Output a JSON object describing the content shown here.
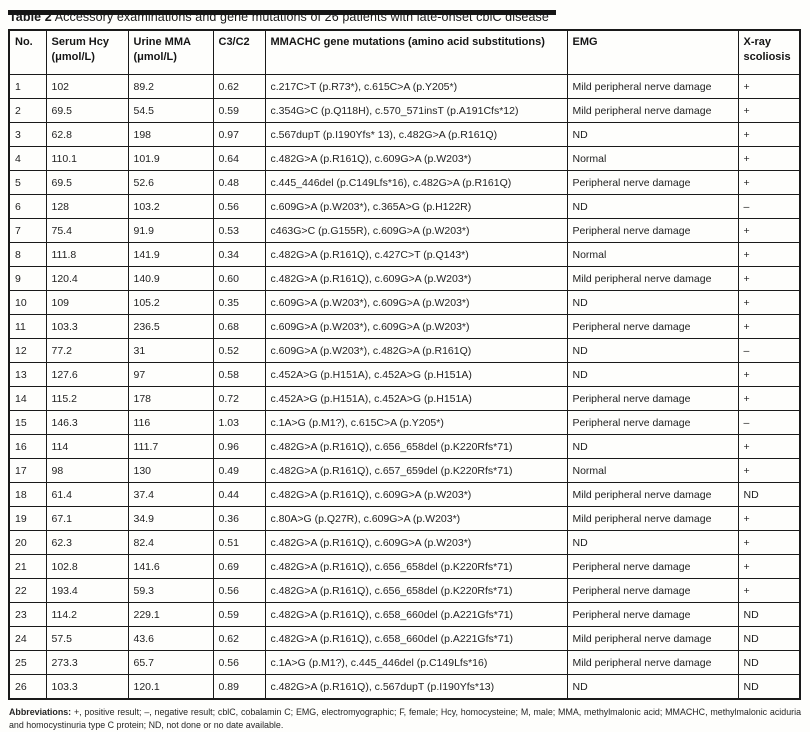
{
  "title": {
    "label": "Table 2",
    "text": " Accessory examinations and gene mutations of 26 patients with late-onset cblC disease"
  },
  "table": {
    "columns": [
      {
        "name": "no",
        "lines": [
          "No."
        ]
      },
      {
        "name": "serum-hcy",
        "lines": [
          "Serum Hcy",
          "(μmol/L)"
        ]
      },
      {
        "name": "urine-mma",
        "lines": [
          "Urine MMA",
          "(μmol/L)"
        ]
      },
      {
        "name": "c3-c2",
        "lines": [
          "C3/C2"
        ]
      },
      {
        "name": "mmachc-mutations",
        "lines": [
          "MMACHC gene mutations (amino acid substitutions)"
        ]
      },
      {
        "name": "emg",
        "lines": [
          "EMG"
        ]
      },
      {
        "name": "xray-scoliosis",
        "lines": [
          "X-ray",
          "scoliosis"
        ]
      }
    ],
    "rows": [
      [
        "1",
        "102",
        "89.2",
        "0.62",
        "c.217C>T (p.R73*), c.615C>A (p.Y205*)",
        "Mild peripheral nerve damage",
        "+"
      ],
      [
        "2",
        "69.5",
        "54.5",
        "0.59",
        "c.354G>C (p.Q118H), c.570_571insT (p.A191Cfs*12)",
        "Mild peripheral nerve damage",
        "+"
      ],
      [
        "3",
        "62.8",
        "198",
        "0.97",
        "c.567dupT (p.I190Yfs* 13), c.482G>A (p.R161Q)",
        "ND",
        "+"
      ],
      [
        "4",
        "110.1",
        "101.9",
        "0.64",
        "c.482G>A (p.R161Q), c.609G>A (p.W203*)",
        "Normal",
        "+"
      ],
      [
        "5",
        "69.5",
        "52.6",
        "0.48",
        "c.445_446del (p.C149Lfs*16), c.482G>A (p.R161Q)",
        "Peripheral nerve damage",
        "+"
      ],
      [
        "6",
        "128",
        "103.2",
        "0.56",
        "c.609G>A (p.W203*), c.365A>G (p.H122R)",
        "ND",
        "–"
      ],
      [
        "7",
        "75.4",
        "91.9",
        "0.53",
        "c463G>C (p.G155R), c.609G>A (p.W203*)",
        "Peripheral nerve damage",
        "+"
      ],
      [
        "8",
        "111.8",
        "141.9",
        "0.34",
        "c.482G>A (p.R161Q), c.427C>T (p.Q143*)",
        "Normal",
        "+"
      ],
      [
        "9",
        "120.4",
        "140.9",
        "0.60",
        "c.482G>A (p.R161Q), c.609G>A (p.W203*)",
        "Mild peripheral nerve damage",
        "+"
      ],
      [
        "10",
        "109",
        "105.2",
        "0.35",
        "c.609G>A (p.W203*), c.609G>A (p.W203*)",
        "ND",
        "+"
      ],
      [
        "11",
        "103.3",
        "236.5",
        "0.68",
        "c.609G>A (p.W203*), c.609G>A (p.W203*)",
        "Peripheral nerve damage",
        "+"
      ],
      [
        "12",
        "77.2",
        "31",
        "0.52",
        "c.609G>A (p.W203*), c.482G>A (p.R161Q)",
        "ND",
        "–"
      ],
      [
        "13",
        "127.6",
        "97",
        "0.58",
        "c.452A>G (p.H151A), c.452A>G (p.H151A)",
        "ND",
        "+"
      ],
      [
        "14",
        "115.2",
        "178",
        "0.72",
        "c.452A>G (p.H151A), c.452A>G (p.H151A)",
        "Peripheral nerve damage",
        "+"
      ],
      [
        "15",
        "146.3",
        "116",
        "1.03",
        "c.1A>G (p.M1?), c.615C>A (p.Y205*)",
        "Peripheral nerve damage",
        "–"
      ],
      [
        "16",
        "114",
        "111.7",
        "0.96",
        "c.482G>A (p.R161Q), c.656_658del (p.K220Rfs*71)",
        "ND",
        "+"
      ],
      [
        "17",
        "98",
        "130",
        "0.49",
        "c.482G>A (p.R161Q), c.657_659del (p.K220Rfs*71)",
        "Normal",
        "+"
      ],
      [
        "18",
        "61.4",
        "37.4",
        "0.44",
        "c.482G>A (p.R161Q), c.609G>A (p.W203*)",
        "Mild peripheral nerve damage",
        "ND"
      ],
      [
        "19",
        "67.1",
        "34.9",
        "0.36",
        "c.80A>G (p.Q27R), c.609G>A (p.W203*)",
        "Mild peripheral nerve damage",
        "+"
      ],
      [
        "20",
        "62.3",
        "82.4",
        "0.51",
        "c.482G>A (p.R161Q), c.609G>A (p.W203*)",
        "ND",
        "+"
      ],
      [
        "21",
        "102.8",
        "141.6",
        "0.69",
        "c.482G>A (p.R161Q), c.656_658del (p.K220Rfs*71)",
        "Peripheral nerve damage",
        "+"
      ],
      [
        "22",
        "193.4",
        "59.3",
        "0.56",
        "c.482G>A (p.R161Q), c.656_658del (p.K220Rfs*71)",
        "Peripheral nerve damage",
        "+"
      ],
      [
        "23",
        "114.2",
        "229.1",
        "0.59",
        "c.482G>A (p.R161Q), c.658_660del (p.A221Gfs*71)",
        "Peripheral nerve damage",
        "ND"
      ],
      [
        "24",
        "57.5",
        "43.6",
        "0.62",
        "c.482G>A (p.R161Q), c.658_660del (p.A221Gfs*71)",
        "Mild peripheral nerve damage",
        "ND"
      ],
      [
        "25",
        "273.3",
        "65.7",
        "0.56",
        "c.1A>G (p.M1?), c.445_446del (p.C149Lfs*16)",
        "Mild peripheral nerve damage",
        "ND"
      ],
      [
        "26",
        "103.3",
        "120.1",
        "0.89",
        "c.482G>A (p.R161Q), c.567dupT (p.I190Yfs*13)",
        "ND",
        "ND"
      ]
    ]
  },
  "footer": {
    "label": "Abbreviations:",
    "text": " +, positive result; –, negative result; cblC, cobalamin C; EMG, electromyographic; F, female; Hcy, homocysteine; M, male; MMA, methylmalonic acid; MMACHC, methylmalonic aciduria and homocystinuria type C protein; ND, not done or no date available."
  }
}
